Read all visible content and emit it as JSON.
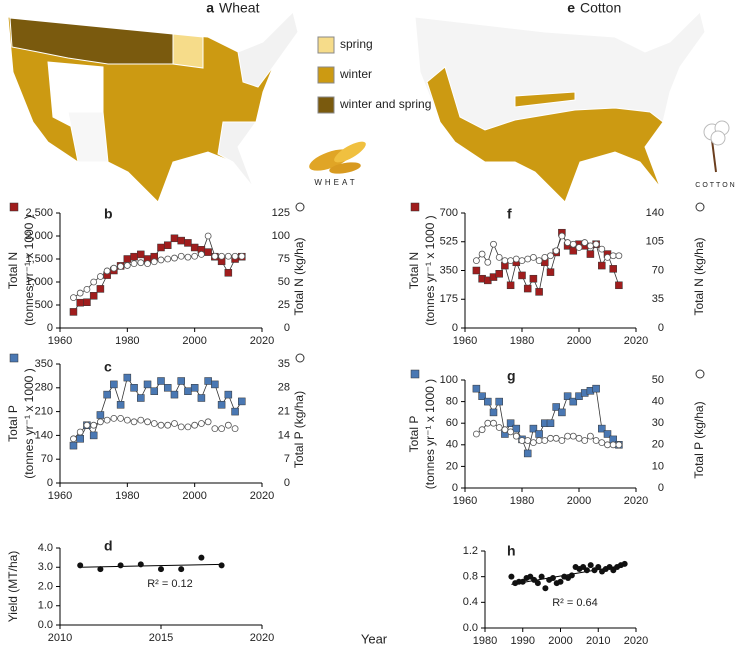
{
  "maps": [
    {
      "label": "a",
      "title": "Wheat",
      "icon_text": "WHEAT",
      "legend": [
        {
          "name": "spring",
          "color": "#f6dc8a"
        },
        {
          "name": "winter",
          "color": "#cc9a12"
        },
        {
          "name": "winter and spring",
          "color": "#7a5a0e"
        }
      ]
    },
    {
      "label": "e",
      "title": "Cotton",
      "icon_text": "COTTON"
    }
  ],
  "shared_xlabel": "Year",
  "chart_data": [
    {
      "type": "line",
      "panel": "b",
      "ylabel": "Total N",
      "ylabel_unit": "(tonnes yr⁻¹ x 1000 )",
      "y2label": "Total N  (kg/ha)",
      "xlim": [
        1960,
        2020
      ],
      "xticks": [
        1960,
        1980,
        2000,
        2020
      ],
      "ylim": [
        0,
        2500
      ],
      "yticks": [
        0,
        500,
        {
          "value": 1000,
          "label": "1,000"
        },
        {
          "value": 1500,
          "label": "1,500"
        },
        {
          "value": 2000,
          "label": "2,000"
        },
        {
          "value": 2500,
          "label": "2,500"
        }
      ],
      "y2lim": [
        0,
        125
      ],
      "y2ticks": [
        0,
        25,
        50,
        75,
        100,
        125
      ],
      "series": [
        {
          "color": "#a01d1d",
          "marker": "square",
          "line": true,
          "x": [
            1964,
            1966,
            1968,
            1970,
            1972,
            1974,
            1976,
            1978,
            1980,
            1982,
            1984,
            1986,
            1988,
            1990,
            1992,
            1994,
            1996,
            1998,
            2000,
            2002,
            2004,
            2006,
            2008,
            2010,
            2012,
            2014
          ],
          "values": [
            350,
            550,
            560,
            700,
            850,
            1150,
            1250,
            1350,
            1500,
            1550,
            1600,
            1500,
            1550,
            1750,
            1800,
            1950,
            1900,
            1850,
            1750,
            1700,
            1650,
            1550,
            1450,
            1200,
            1500,
            1550
          ]
        },
        {
          "color": "#ffffff",
          "marker": "circle",
          "line": true,
          "axis": "y2",
          "x": [
            1964,
            1966,
            1968,
            1970,
            1972,
            1974,
            1976,
            1978,
            1980,
            1982,
            1984,
            1986,
            1988,
            1990,
            1992,
            1994,
            1996,
            1998,
            2000,
            2002,
            2004,
            2006,
            2008,
            2010,
            2012,
            2014
          ],
          "values": [
            33,
            38,
            42,
            50,
            56,
            62,
            65,
            67,
            68,
            70,
            71,
            70,
            72,
            74,
            75,
            76,
            78,
            77,
            78,
            80,
            100,
            78,
            78,
            78,
            78,
            78
          ]
        }
      ]
    },
    {
      "type": "line",
      "panel": "c",
      "ylabel": "Total P",
      "ylabel_unit": "(tonnes yr⁻¹ x 1000 )",
      "y2label": "Total P  (kg/ha)",
      "xlim": [
        1960,
        2020
      ],
      "xticks": [
        1960,
        1980,
        2000,
        2020
      ],
      "ylim": [
        0,
        350
      ],
      "yticks": [
        0,
        70,
        140,
        210,
        280,
        350
      ],
      "y2lim": [
        0,
        35
      ],
      "y2ticks": [
        0,
        7,
        14,
        21,
        28,
        35
      ],
      "series": [
        {
          "color": "#4a78b3",
          "marker": "square",
          "line": true,
          "x": [
            1964,
            1966,
            1968,
            1970,
            1972,
            1974,
            1976,
            1978,
            1980,
            1982,
            1984,
            1986,
            1988,
            1990,
            1992,
            1994,
            1996,
            1998,
            2000,
            2002,
            2004,
            2006,
            2008,
            2010,
            2012,
            2014
          ],
          "values": [
            110,
            130,
            170,
            140,
            200,
            260,
            290,
            230,
            310,
            280,
            250,
            290,
            270,
            300,
            280,
            260,
            300,
            270,
            280,
            250,
            300,
            290,
            230,
            260,
            210,
            240
          ]
        },
        {
          "color": "#ffffff",
          "marker": "circle",
          "line": true,
          "axis": "y2",
          "x": [
            1964,
            1966,
            1968,
            1970,
            1972,
            1974,
            1976,
            1978,
            1980,
            1982,
            1984,
            1986,
            1988,
            1990,
            1992,
            1994,
            1996,
            1998,
            2000,
            2002,
            2004,
            2005,
            2006,
            2007,
            2008,
            2009,
            2010,
            2011,
            2012
          ],
          "values": [
            13,
            15,
            17,
            17,
            18,
            18.5,
            19,
            19,
            18.5,
            18,
            18.5,
            18,
            17.5,
            17,
            17,
            17.5,
            16.5,
            16.5,
            17,
            17.5,
            18,
            null,
            16,
            null,
            16,
            null,
            17,
            null,
            16
          ]
        }
      ]
    },
    {
      "type": "scatter",
      "panel": "d",
      "ylabel": "Yield (MT/ha)",
      "annotation": "R² = 0.12",
      "xlim": [
        2010,
        2020
      ],
      "xticks": [
        2010,
        2015,
        2020
      ],
      "ylim": [
        0,
        4
      ],
      "yticks": [
        {
          "value": 0,
          "label": "0.0"
        },
        {
          "value": 1,
          "label": "1.0"
        },
        {
          "value": 2,
          "label": "2.0"
        },
        {
          "value": 3,
          "label": "3.0"
        },
        {
          "value": 4,
          "label": "4.0"
        }
      ],
      "series": [
        {
          "color": "#111111",
          "marker": "dot",
          "x": [
            2011,
            2012,
            2013,
            2014,
            2015,
            2016,
            2017,
            2018
          ],
          "values": [
            3.1,
            2.9,
            3.1,
            3.15,
            2.9,
            2.9,
            3.5,
            3.1
          ]
        }
      ],
      "fit": {
        "x": [
          2011,
          2018
        ],
        "values": [
          3.0,
          3.15
        ]
      }
    },
    {
      "type": "line",
      "panel": "f",
      "ylabel": "Total N",
      "ylabel_unit": "(tonnes yr⁻¹ x 1000 )",
      "y2label": "Total N  (kg/ha)",
      "xlim": [
        1960,
        2020
      ],
      "xticks": [
        1960,
        1980,
        2000,
        2020
      ],
      "ylim": [
        0,
        700
      ],
      "yticks": [
        0,
        175,
        350,
        525,
        700
      ],
      "y2lim": [
        0,
        140
      ],
      "y2ticks": [
        0,
        35,
        70,
        105,
        140
      ],
      "series": [
        {
          "color": "#a01d1d",
          "marker": "square",
          "line": true,
          "x": [
            1964,
            1966,
            1968,
            1970,
            1972,
            1974,
            1976,
            1978,
            1980,
            1982,
            1984,
            1986,
            1988,
            1990,
            1992,
            1994,
            1996,
            1998,
            2000,
            2002,
            2004,
            2006,
            2008,
            2010,
            2012,
            2014
          ],
          "values": [
            350,
            300,
            290,
            310,
            330,
            380,
            260,
            400,
            320,
            240,
            300,
            220,
            400,
            340,
            460,
            580,
            500,
            470,
            510,
            500,
            450,
            510,
            380,
            450,
            360,
            260
          ]
        },
        {
          "color": "#ffffff",
          "marker": "circle",
          "line": true,
          "axis": "y2",
          "x": [
            1964,
            1966,
            1968,
            1970,
            1972,
            1974,
            1976,
            1978,
            1980,
            1982,
            1984,
            1986,
            1988,
            1990,
            1992,
            1994,
            1996,
            1998,
            2000,
            2002,
            2004,
            2006,
            2008,
            2010,
            2012,
            2014
          ],
          "values": [
            82,
            90,
            80,
            102,
            86,
            82,
            82,
            84,
            82,
            84,
            86,
            82,
            86,
            88,
            94,
            112,
            104,
            102,
            98,
            104,
            100,
            102,
            96,
            86,
            88,
            88
          ]
        }
      ]
    },
    {
      "type": "line",
      "panel": "g",
      "ylabel": "Total P",
      "ylabel_unit": "(tonnes yr⁻¹ x 1000 )",
      "y2label": "Total P  (kg/ha)",
      "xlim": [
        1960,
        2020
      ],
      "xticks": [
        1960,
        1980,
        2000,
        2020
      ],
      "ylim": [
        0,
        100
      ],
      "yticks": [
        0,
        20,
        40,
        60,
        80,
        100
      ],
      "y2lim": [
        0,
        50
      ],
      "y2ticks": [
        0,
        10,
        20,
        30,
        40,
        50
      ],
      "series": [
        {
          "color": "#4a78b3",
          "marker": "square",
          "line": true,
          "x": [
            1964,
            1966,
            1968,
            1970,
            1972,
            1974,
            1976,
            1978,
            1980,
            1982,
            1984,
            1986,
            1988,
            1990,
            1992,
            1994,
            1996,
            1998,
            2000,
            2002,
            2004,
            2006,
            2008,
            2010,
            2012,
            2014
          ],
          "values": [
            92,
            85,
            80,
            70,
            80,
            50,
            60,
            55,
            45,
            32,
            55,
            50,
            60,
            60,
            75,
            70,
            85,
            80,
            85,
            88,
            90,
            92,
            55,
            50,
            45,
            40
          ]
        },
        {
          "color": "#ffffff",
          "marker": "circle",
          "line": true,
          "axis": "y2",
          "x": [
            1964,
            1966,
            1968,
            1970,
            1972,
            1974,
            1976,
            1978,
            1980,
            1982,
            1984,
            1986,
            1988,
            1990,
            1992,
            1994,
            1996,
            1998,
            2000,
            2002,
            2004,
            2006,
            2008,
            2010,
            2012,
            2014
          ],
          "values": [
            25,
            27,
            30,
            30,
            28,
            27,
            26,
            24,
            22,
            22,
            21,
            22,
            22,
            23,
            23,
            22,
            24,
            24,
            23,
            22,
            24,
            22,
            21,
            20,
            20,
            20
          ]
        }
      ]
    },
    {
      "type": "scatter",
      "panel": "h",
      "annotation": "R² = 0.64",
      "xlim": [
        1980,
        2020
      ],
      "xticks": [
        1980,
        1990,
        2000,
        2010,
        2020
      ],
      "ylim": [
        0,
        1.2
      ],
      "yticks": [
        {
          "value": 0,
          "label": "0.0"
        },
        0.4,
        0.8,
        1.2
      ],
      "series": [
        {
          "color": "#111111",
          "marker": "dot",
          "x": [
            1987,
            1988,
            1989,
            1990,
            1991,
            1992,
            1993,
            1994,
            1995,
            1996,
            1997,
            1998,
            1999,
            2000,
            2001,
            2002,
            2003,
            2004,
            2005,
            2006,
            2007,
            2008,
            2009,
            2010,
            2011,
            2012,
            2013,
            2014,
            2015,
            2016,
            2017
          ],
          "values": [
            0.8,
            0.7,
            0.72,
            0.72,
            0.78,
            0.8,
            0.75,
            0.7,
            0.8,
            0.62,
            0.75,
            0.78,
            0.7,
            0.72,
            0.8,
            0.78,
            0.82,
            0.95,
            0.92,
            0.95,
            0.9,
            0.98,
            0.9,
            0.95,
            0.88,
            0.92,
            0.95,
            0.9,
            0.95,
            0.98,
            1.0
          ]
        }
      ],
      "fit": {
        "x": [
          1987,
          2017
        ],
        "values": [
          0.68,
          0.98
        ]
      }
    }
  ]
}
